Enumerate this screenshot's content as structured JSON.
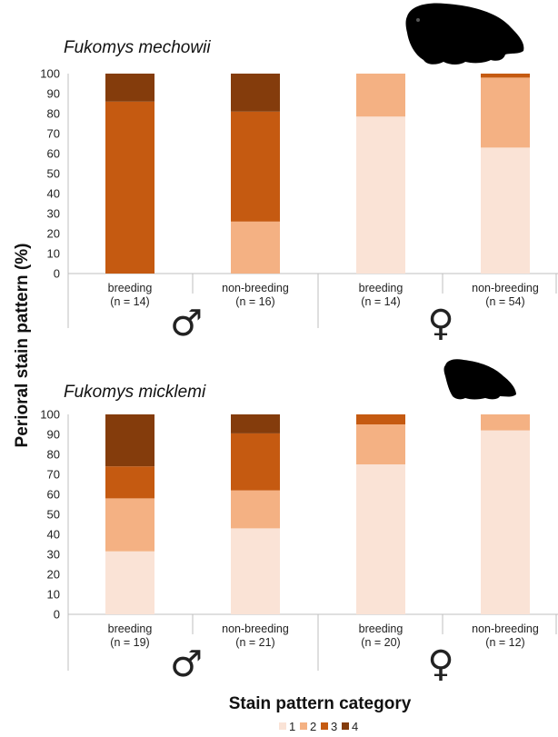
{
  "chart_data": {
    "type": "bar",
    "stacked": true,
    "ylabel": "Perioral stain pattern (%)",
    "xlabel": "Stain pattern category",
    "ylim": [
      0,
      100
    ],
    "yticks": [
      0,
      10,
      20,
      30,
      40,
      50,
      60,
      70,
      80,
      90,
      100
    ],
    "legend": {
      "placement": "bottom",
      "items": [
        {
          "label": "1",
          "color": "#fae3d6"
        },
        {
          "label": "2",
          "color": "#f4b183"
        },
        {
          "label": "3",
          "color": "#c55a11"
        },
        {
          "label": "4",
          "color": "#843c0c"
        }
      ]
    },
    "panels": [
      {
        "title": "Fukomys mechowii",
        "groups": [
          {
            "sex": "♂",
            "categories": [
              {
                "label": "breeding",
                "n": "(n = 14)",
                "values": [
                  0,
                  0,
                  86,
                  14
                ]
              },
              {
                "label": "non-breeding",
                "n": "(n = 16)",
                "values": [
                  0,
                  26,
                  55,
                  19
                ]
              }
            ]
          },
          {
            "sex": "♀",
            "categories": [
              {
                "label": "breeding",
                "n": "(n = 14)",
                "values": [
                  78.5,
                  21.5,
                  0,
                  0
                ]
              },
              {
                "label": "non-breeding",
                "n": "(n = 54)",
                "values": [
                  63,
                  35,
                  2,
                  0
                ]
              }
            ]
          }
        ]
      },
      {
        "title": "Fukomys micklemi",
        "groups": [
          {
            "sex": "♂",
            "categories": [
              {
                "label": "breeding",
                "n": "(n = 19)",
                "values": [
                  31.5,
                  26.5,
                  16,
                  26
                ]
              },
              {
                "label": "non-breeding",
                "n": "(n = 21)",
                "values": [
                  43,
                  19,
                  28.5,
                  9.5
                ]
              }
            ]
          },
          {
            "sex": "♀",
            "categories": [
              {
                "label": "breeding",
                "n": "(n = 20)",
                "values": [
                  75,
                  20,
                  5,
                  0
                ]
              },
              {
                "label": "non-breeding",
                "n": "(n = 12)",
                "values": [
                  92,
                  8,
                  0,
                  0
                ]
              }
            ]
          }
        ]
      }
    ]
  },
  "icons": {
    "panel_1": "mole-rat-silhouette-icon",
    "panel_2": "mole-rat-silhouette-icon"
  }
}
